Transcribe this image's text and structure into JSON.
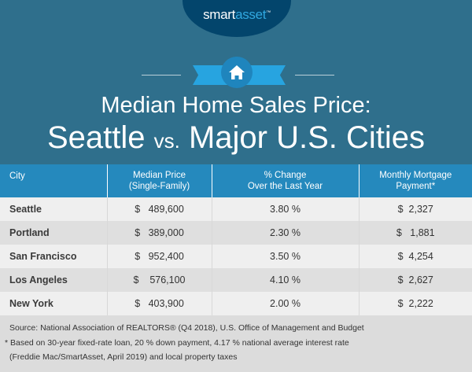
{
  "brand": {
    "part1": "smart",
    "part2": "asset",
    "tm": "™"
  },
  "title": {
    "line1": "Median Home Sales Price:",
    "line2_a": "Seattle",
    "line2_vs": "vs.",
    "line2_b": "Major U.S. Cities"
  },
  "icon": "house-icon",
  "colors": {
    "background": "#2f6f8c",
    "header": "#2589bd",
    "accent": "#27a4e0",
    "logo": "#03456c"
  },
  "chart_data": {
    "type": "table",
    "columns": [
      "City",
      "Median Price (Single-Family)",
      "% Change Over the Last Year",
      "Monthly Mortgage Payment*"
    ],
    "header": {
      "c0": "City",
      "c1a": "Median Price",
      "c1b": "(Single-Family)",
      "c2a": "% Change",
      "c2b": "Over the Last Year",
      "c3a": "Monthly Mortgage",
      "c3b": "Payment*"
    },
    "rows": [
      {
        "city": "Seattle",
        "price": "$   489,600",
        "change": "3.80 %",
        "payment": "$  2,327"
      },
      {
        "city": "Portland",
        "price": "$   389,000",
        "change": "2.30 %",
        "payment": "$   1,881"
      },
      {
        "city": "San Francisco",
        "price": "$   952,400",
        "change": "3.50 %",
        "payment": "$  4,254"
      },
      {
        "city": "Los Angeles",
        "price": "$    576,100",
        "change": "4.10 %",
        "payment": "$  2,627"
      },
      {
        "city": "New York",
        "price": "$   403,900",
        "change": "2.00 %",
        "payment": "$  2,222"
      }
    ]
  },
  "footer": {
    "source": "Source: National Association of REALTORS® (Q4 2018), U.S. Office of Management and Budget",
    "note1": "* Based on 30-year fixed-rate loan, 20 % down payment, 4.17 % national average interest rate",
    "note2": "(Freddie Mac/SmartAsset, April 2019) and local property taxes"
  }
}
